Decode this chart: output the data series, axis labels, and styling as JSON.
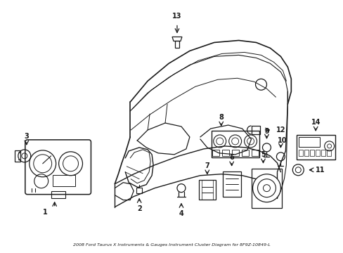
{
  "title": "2008 Ford Taurus X Instruments & Gauges Instrument Cluster Diagram for 8F9Z-10849-L",
  "background_color": "#ffffff",
  "line_color": "#1a1a1a",
  "fig_width": 4.89,
  "fig_height": 3.6,
  "dpi": 100
}
